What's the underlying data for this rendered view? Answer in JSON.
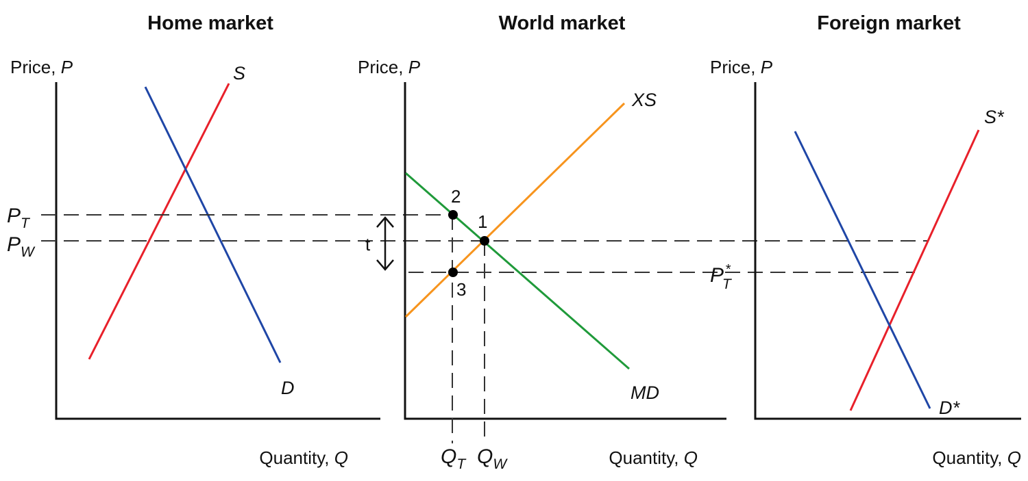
{
  "panels": {
    "home": {
      "title": "Home market",
      "y_axis": {
        "label": "Price, ",
        "var": "P"
      },
      "x_axis": {
        "label": "Quantity, ",
        "var": "Q"
      },
      "supply": "S",
      "demand": "D"
    },
    "world": {
      "title": "World market",
      "y_axis": {
        "label": "Price, ",
        "var": "P"
      },
      "x_axis": {
        "label": "Quantity, ",
        "var": "Q"
      },
      "export_supply": "XS",
      "import_demand": "MD",
      "tariff_label": "t",
      "points": [
        "1",
        "2",
        "3"
      ],
      "q_labels": [
        {
          "main": "Q",
          "sub": "T"
        },
        {
          "main": "Q",
          "sub": "W"
        }
      ]
    },
    "foreign": {
      "title": "Foreign market",
      "y_axis": {
        "label": "Price, ",
        "var": "P"
      },
      "x_axis": {
        "label": "Quantity, ",
        "var": "Q"
      },
      "supply": "S*",
      "demand": "D*"
    }
  },
  "price_labels": {
    "pt": {
      "main": "P",
      "sub": "T"
    },
    "pw": {
      "main": "P",
      "sub": "W"
    },
    "pt_star": {
      "main": "P",
      "sub": "T",
      "sup": "*"
    }
  },
  "colors": {
    "supply": "#e8202a",
    "demand": "#1f46a6",
    "export_supply": "#f7941d",
    "import_demand": "#1f9a3a",
    "axis": "#111111"
  }
}
